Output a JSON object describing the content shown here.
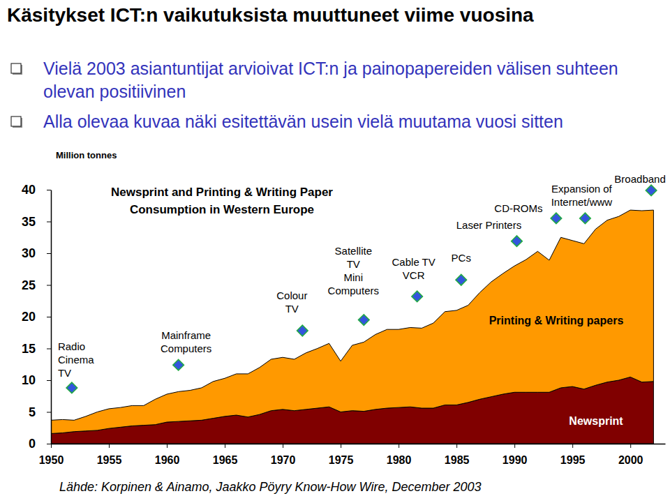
{
  "slide": {
    "title": "Käsitykset ICT:n vaikutuksista muuttuneet viime vuosina",
    "bullets": [
      "Vielä 2003 asiantuntijat arvioivat ICT:n ja painopapereiden välisen suhteen olevan positiivinen",
      "Alla olevaa kuvaa näki esitettävän usein vielä muutama vuosi sitten"
    ],
    "source": "Lähde: Korpinen & Ainamo, Jaakko Pöyry Know-How Wire, December 2003"
  },
  "chart_data": {
    "type": "area",
    "stacked": true,
    "grid": false,
    "title": [
      "Newsprint and Printing & Writing Paper",
      "Consumption in Western Europe"
    ],
    "y_label": "Million tonnes",
    "x": [
      1950,
      1951,
      1952,
      1953,
      1954,
      1955,
      1956,
      1957,
      1958,
      1959,
      1960,
      1961,
      1962,
      1963,
      1964,
      1965,
      1966,
      1967,
      1968,
      1969,
      1970,
      1971,
      1972,
      1973,
      1974,
      1975,
      1976,
      1977,
      1978,
      1979,
      1980,
      1981,
      1982,
      1983,
      1984,
      1985,
      1986,
      1987,
      1988,
      1989,
      1990,
      1991,
      1992,
      1993,
      1994,
      1995,
      1996,
      1997,
      1998,
      1999,
      2000,
      2001,
      2002
    ],
    "series": [
      {
        "name": "Newsprint",
        "color": "#800000",
        "values": [
          1.6,
          1.7,
          1.9,
          2.0,
          2.1,
          2.4,
          2.6,
          2.8,
          2.9,
          3.0,
          3.4,
          3.5,
          3.6,
          3.7,
          4.0,
          4.3,
          4.5,
          4.2,
          4.6,
          5.2,
          5.4,
          5.2,
          5.4,
          5.6,
          5.8,
          5.0,
          5.2,
          5.1,
          5.4,
          5.6,
          5.7,
          5.8,
          5.6,
          5.6,
          6.1,
          6.1,
          6.5,
          7.0,
          7.4,
          7.8,
          8.1,
          8.1,
          8.1,
          8.1,
          8.8,
          9.0,
          8.6,
          9.2,
          9.7,
          10.0,
          10.5,
          9.7,
          9.8
        ]
      },
      {
        "name": "Printing & Writing papers",
        "color": "#ff9900",
        "values": [
          2.1,
          2.1,
          1.8,
          2.3,
          2.9,
          3.1,
          3.1,
          3.2,
          3.1,
          4.0,
          4.4,
          4.7,
          4.8,
          5.1,
          5.8,
          6.0,
          6.5,
          6.8,
          7.4,
          8.1,
          8.2,
          8.1,
          8.9,
          9.4,
          10.0,
          8.0,
          10.3,
          10.9,
          11.8,
          12.4,
          12.3,
          12.5,
          12.6,
          13.4,
          14.7,
          14.9,
          15.3,
          16.8,
          18.1,
          19.0,
          19.9,
          20.9,
          22.2,
          20.8,
          23.7,
          23.0,
          22.9,
          24.6,
          25.5,
          25.8,
          26.3,
          27.0,
          27.0
        ]
      }
    ],
    "xlim": [
      1950,
      2003
    ],
    "xticks": [
      1950,
      1955,
      1960,
      1965,
      1970,
      1975,
      1980,
      1985,
      1990,
      1995,
      2000
    ],
    "ylim": [
      0,
      40
    ],
    "yticks": [
      0,
      5,
      10,
      15,
      20,
      25,
      30,
      35,
      40
    ],
    "annotations": [
      {
        "text": [
          "Radio",
          "Cinema",
          "TV"
        ],
        "x": 1951.8,
        "y": 8.8
      },
      {
        "text": [
          "Mainframe",
          "Computers"
        ],
        "x": 1961.0,
        "y": 12.4
      },
      {
        "text": [
          "Colour",
          "TV"
        ],
        "x": 1971.7,
        "y": 17.8
      },
      {
        "text": [
          "Satellite",
          "TV",
          "Mini",
          "Computers"
        ],
        "x": 1977.0,
        "y": 19.5
      },
      {
        "text": [
          "Cable TV",
          "VCR"
        ],
        "x": 1981.6,
        "y": 23.2
      },
      {
        "text": [
          "PCs"
        ],
        "x": 1985.4,
        "y": 25.8
      },
      {
        "text": [
          "Laser Printers"
        ],
        "x": 1990.2,
        "y": 31.9
      },
      {
        "text": [
          "CD-ROMs"
        ],
        "x": 1993.6,
        "y": 35.5
      },
      {
        "text": [
          "Expansion of",
          "Internet/www"
        ],
        "x": 1996.1,
        "y": 35.5
      },
      {
        "text": [
          "Broadband"
        ],
        "x": 2001.8,
        "y": 39.9
      }
    ]
  }
}
